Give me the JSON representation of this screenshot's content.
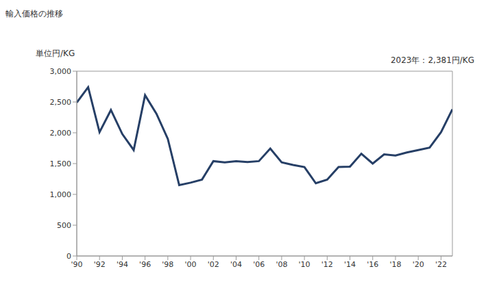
{
  "chart_data": {
    "type": "line",
    "title": "輸入価格の推移",
    "y_label": "単位円/KG",
    "annotation": "2023年：2,381円/KG",
    "x": [
      1990,
      1991,
      1992,
      1993,
      1994,
      1995,
      1996,
      1997,
      1998,
      1999,
      2000,
      2001,
      2002,
      2003,
      2004,
      2005,
      2006,
      2007,
      2008,
      2009,
      2010,
      2011,
      2012,
      2013,
      2014,
      2015,
      2016,
      2017,
      2018,
      2019,
      2020,
      2021,
      2022,
      2023
    ],
    "values": [
      2490,
      2740,
      2010,
      2370,
      1980,
      1720,
      2610,
      2310,
      1900,
      1150,
      1190,
      1240,
      1540,
      1520,
      1540,
      1525,
      1540,
      1744,
      1520,
      1478,
      1444,
      1180,
      1240,
      1444,
      1450,
      1660,
      1500,
      1650,
      1630,
      1680,
      1720,
      1760,
      2010,
      2381
    ],
    "color": "#263f66",
    "xlim": [
      1990,
      2023
    ],
    "xticks": [
      {
        "value": 1990,
        "label": "'90"
      },
      {
        "value": 1992,
        "label": "'92"
      },
      {
        "value": 1994,
        "label": "'94"
      },
      {
        "value": 1996,
        "label": "'96"
      },
      {
        "value": 1998,
        "label": "'98"
      },
      {
        "value": 2000,
        "label": "'00"
      },
      {
        "value": 2002,
        "label": "'02"
      },
      {
        "value": 2004,
        "label": "'04"
      },
      {
        "value": 2006,
        "label": "'06"
      },
      {
        "value": 2008,
        "label": "'08"
      },
      {
        "value": 2010,
        "label": "'10"
      },
      {
        "value": 2012,
        "label": "'12"
      },
      {
        "value": 2014,
        "label": "'14"
      },
      {
        "value": 2016,
        "label": "'16"
      },
      {
        "value": 2018,
        "label": "'18"
      },
      {
        "value": 2020,
        "label": "'20"
      },
      {
        "value": 2022,
        "label": "'22"
      }
    ],
    "ylim": [
      0,
      3000
    ],
    "yticks": [
      0,
      500,
      {
        "value": 1000,
        "label": "1,000"
      },
      {
        "value": 1500,
        "label": "1,500"
      },
      {
        "value": 2000,
        "label": "2,000"
      },
      {
        "value": 2500,
        "label": "2,500"
      },
      {
        "value": 3000,
        "label": "3,000"
      }
    ],
    "grid": false
  }
}
